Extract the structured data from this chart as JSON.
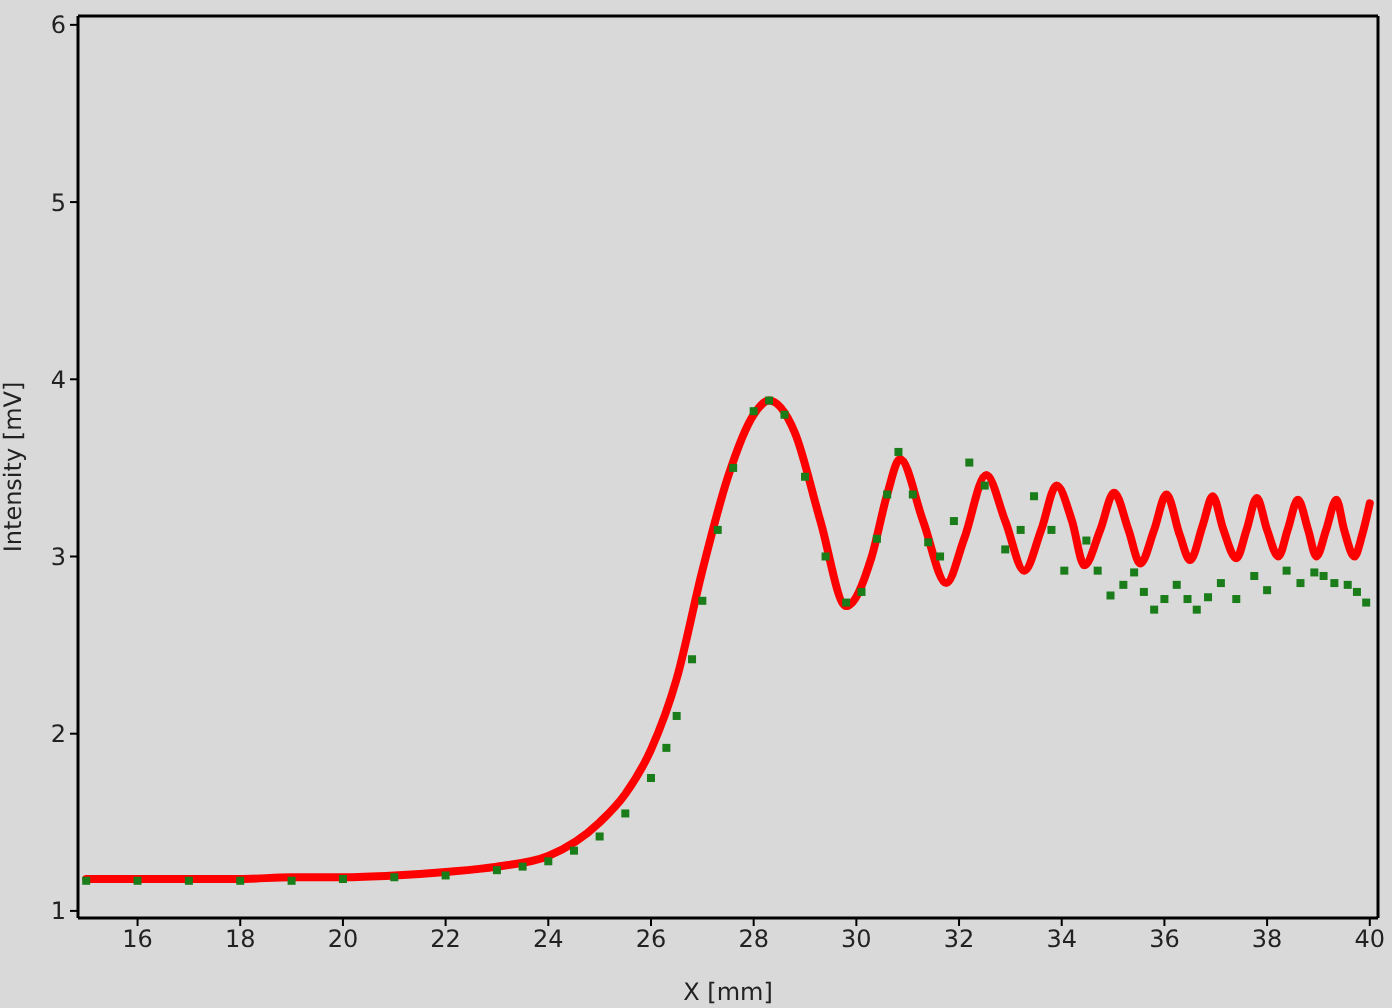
{
  "chart_data": {
    "type": "line",
    "xlabel": "X [mm]",
    "ylabel": "Intensity [mV]",
    "xlim": [
      14.84,
      40.16
    ],
    "ylim": [
      0.96,
      6.05
    ],
    "xticks": [
      16,
      18,
      20,
      22,
      24,
      26,
      28,
      30,
      32,
      34,
      36,
      38,
      40
    ],
    "yticks": [
      1,
      2,
      3,
      4,
      5,
      6
    ],
    "series": [
      {
        "type": "scatter",
        "marker": "square",
        "color": "#1a7d1a",
        "x": [
          15,
          16,
          17,
          18,
          19,
          20,
          21,
          22,
          23,
          23.5,
          24,
          24.5,
          25,
          25.5,
          26,
          26.3,
          26.5,
          26.8,
          27,
          27.3,
          27.6,
          28,
          28.3,
          28.6,
          29,
          29.4,
          29.8,
          30.1,
          30.4,
          30.6,
          30.82,
          31.1,
          31.4,
          31.63,
          31.9,
          32.2,
          32.5,
          32.9,
          33.2,
          33.46,
          33.8,
          34.05,
          34.48,
          34.7,
          34.95,
          35.2,
          35.41,
          35.6,
          35.8,
          36.0,
          36.24,
          36.45,
          36.63,
          36.85,
          37.1,
          37.4,
          37.75,
          38.0,
          38.38,
          38.65,
          38.92,
          39.1,
          39.31,
          39.57,
          39.75,
          39.93
        ],
        "values": [
          1.17,
          1.17,
          1.17,
          1.17,
          1.17,
          1.18,
          1.19,
          1.2,
          1.23,
          1.25,
          1.28,
          1.34,
          1.42,
          1.55,
          1.75,
          1.92,
          2.1,
          2.42,
          2.75,
          3.15,
          3.5,
          3.82,
          3.88,
          3.8,
          3.45,
          3.0,
          2.74,
          2.8,
          3.1,
          3.35,
          3.59,
          3.35,
          3.08,
          3.0,
          3.2,
          3.53,
          3.4,
          3.04,
          3.15,
          3.34,
          3.15,
          2.92,
          3.09,
          2.92,
          2.78,
          2.84,
          2.91,
          2.8,
          2.7,
          2.76,
          2.84,
          2.76,
          2.7,
          2.77,
          2.85,
          2.76,
          2.89,
          2.81,
          2.92,
          2.85,
          2.91,
          2.89,
          2.85,
          2.84,
          2.8,
          2.74
        ]
      },
      {
        "marker": "none",
        "color": "#ff0000",
        "x": [
          15,
          16,
          17,
          18,
          19,
          20,
          21,
          22,
          23,
          24,
          25,
          25.5,
          26,
          26.5,
          27,
          27.5,
          28,
          28.3,
          28.8,
          29.3,
          29.8,
          30.3,
          30.6,
          30.85,
          31.3,
          31.75,
          32.1,
          32.53,
          32.9,
          33.27,
          33.6,
          33.9,
          34.2,
          34.44,
          34.75,
          35.02,
          35.3,
          35.53,
          35.8,
          36.04,
          36.3,
          36.5,
          36.75,
          36.94,
          37.15,
          37.4,
          37.6,
          37.8,
          38.0,
          38.22,
          38.4,
          38.6,
          38.8,
          38.96,
          39.15,
          39.35,
          39.5,
          39.7,
          39.85,
          40.0
        ],
        "values": [
          1.18,
          1.18,
          1.18,
          1.18,
          1.19,
          1.19,
          1.2,
          1.22,
          1.25,
          1.31,
          1.5,
          1.66,
          1.91,
          2.31,
          2.92,
          3.45,
          3.8,
          3.88,
          3.7,
          3.2,
          2.72,
          3.0,
          3.35,
          3.55,
          3.2,
          2.85,
          3.1,
          3.46,
          3.2,
          2.92,
          3.15,
          3.4,
          3.2,
          2.95,
          3.15,
          3.36,
          3.15,
          2.96,
          3.15,
          3.35,
          3.12,
          2.98,
          3.18,
          3.34,
          3.15,
          2.99,
          3.15,
          3.33,
          3.15,
          3.0,
          3.15,
          3.32,
          3.15,
          3.0,
          3.15,
          3.32,
          3.15,
          3.0,
          3.12,
          3.3
        ]
      }
    ]
  }
}
